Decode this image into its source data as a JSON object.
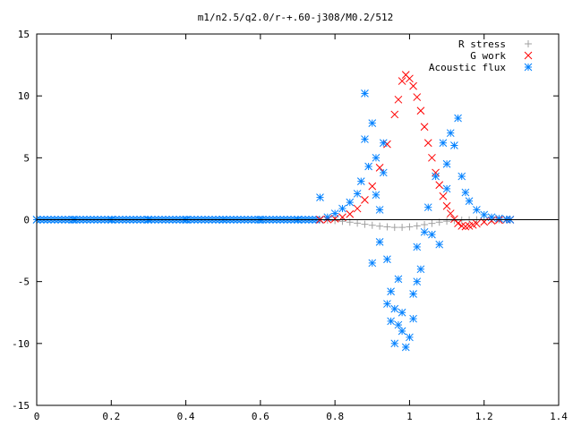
{
  "colors": {
    "r_stress": "#a0a0a0",
    "g_work": "#ff0000",
    "acoustic_flux": "#0080ff",
    "axis": "#000000",
    "background": "#ffffff"
  },
  "chart_data": {
    "type": "scatter",
    "title": "m1/n2.5/q2.0/r-+.60-j308/M0.2/512",
    "xlabel": "",
    "ylabel": "",
    "xlim": [
      0,
      1.4
    ],
    "ylim": [
      -15,
      15
    ],
    "x_ticks": [
      0,
      0.2,
      0.4,
      0.6,
      0.8,
      1,
      1.2,
      1.4
    ],
    "x_tick_labels": [
      "0",
      "0.2",
      "0.4",
      "0.6",
      "0.8",
      "1",
      "1.2",
      "1.4"
    ],
    "y_ticks": [
      -15,
      -10,
      -5,
      0,
      5,
      10,
      15
    ],
    "y_tick_labels": [
      "-15",
      "-10",
      "-5",
      "0",
      "5",
      "10",
      "15"
    ],
    "grid": false,
    "legend_position": "top-right",
    "series": [
      {
        "name": "R stress",
        "marker": "plus",
        "color": "#a0a0a0",
        "points": [
          [
            0.76,
            0.0
          ],
          [
            0.78,
            -0.03
          ],
          [
            0.8,
            -0.07
          ],
          [
            0.82,
            -0.13
          ],
          [
            0.84,
            -0.2
          ],
          [
            0.86,
            -0.28
          ],
          [
            0.88,
            -0.37
          ],
          [
            0.9,
            -0.45
          ],
          [
            0.92,
            -0.52
          ],
          [
            0.94,
            -0.58
          ],
          [
            0.96,
            -0.62
          ],
          [
            0.98,
            -0.62
          ],
          [
            1.0,
            -0.58
          ],
          [
            1.02,
            -0.5
          ],
          [
            1.04,
            -0.4
          ],
          [
            1.06,
            -0.3
          ],
          [
            1.08,
            -0.2
          ],
          [
            1.1,
            -0.12
          ],
          [
            1.12,
            -0.07
          ],
          [
            1.14,
            -0.04
          ],
          [
            1.16,
            -0.02
          ],
          [
            1.18,
            -0.01
          ],
          [
            1.2,
            0.0
          ],
          [
            1.22,
            0.0
          ],
          [
            1.24,
            0.0
          ],
          [
            1.26,
            0.0
          ],
          [
            1.27,
            0.0
          ]
        ]
      },
      {
        "name": "G work",
        "marker": "cross",
        "color": "#ff0000",
        "points": [
          [
            0.76,
            0.0
          ],
          [
            0.78,
            0.02
          ],
          [
            0.8,
            0.08
          ],
          [
            0.82,
            0.2
          ],
          [
            0.84,
            0.45
          ],
          [
            0.86,
            0.9
          ],
          [
            0.88,
            1.6
          ],
          [
            0.9,
            2.7
          ],
          [
            0.92,
            4.2
          ],
          [
            0.94,
            6.1
          ],
          [
            0.96,
            8.5
          ],
          [
            0.97,
            9.7
          ],
          [
            0.98,
            11.2
          ],
          [
            0.99,
            11.7
          ],
          [
            1.0,
            11.4
          ],
          [
            1.01,
            10.8
          ],
          [
            1.02,
            9.9
          ],
          [
            1.03,
            8.8
          ],
          [
            1.04,
            7.5
          ],
          [
            1.05,
            6.2
          ],
          [
            1.06,
            5.0
          ],
          [
            1.07,
            3.8
          ],
          [
            1.08,
            2.8
          ],
          [
            1.09,
            1.9
          ],
          [
            1.1,
            1.1
          ],
          [
            1.11,
            0.5
          ],
          [
            1.12,
            0.05
          ],
          [
            1.13,
            -0.3
          ],
          [
            1.14,
            -0.5
          ],
          [
            1.15,
            -0.55
          ],
          [
            1.16,
            -0.5
          ],
          [
            1.17,
            -0.42
          ],
          [
            1.18,
            -0.32
          ],
          [
            1.2,
            -0.18
          ],
          [
            1.22,
            -0.08
          ],
          [
            1.24,
            -0.03
          ],
          [
            1.26,
            0.0
          ],
          [
            1.27,
            0.0
          ]
        ]
      },
      {
        "name": "Acoustic flux",
        "marker": "star",
        "color": "#0080ff",
        "points": [
          [
            0.0,
            0.0
          ],
          [
            0.1,
            0.0
          ],
          [
            0.2,
            0.0
          ],
          [
            0.3,
            0.0
          ],
          [
            0.4,
            0.0
          ],
          [
            0.5,
            0.0
          ],
          [
            0.6,
            0.0
          ],
          [
            0.7,
            0.0
          ],
          [
            0.76,
            1.8
          ],
          [
            0.78,
            0.2
          ],
          [
            0.8,
            0.5
          ],
          [
            0.82,
            0.9
          ],
          [
            0.84,
            1.4
          ],
          [
            0.86,
            2.1
          ],
          [
            0.87,
            3.1
          ],
          [
            0.88,
            10.2
          ],
          [
            0.88,
            6.5
          ],
          [
            0.89,
            4.3
          ],
          [
            0.9,
            7.8
          ],
          [
            0.9,
            -3.5
          ],
          [
            0.91,
            5.0
          ],
          [
            0.91,
            2.0
          ],
          [
            0.92,
            -1.8
          ],
          [
            0.92,
            0.8
          ],
          [
            0.93,
            6.2
          ],
          [
            0.93,
            3.8
          ],
          [
            0.94,
            -6.8
          ],
          [
            0.94,
            -3.2
          ],
          [
            0.95,
            -5.8
          ],
          [
            0.95,
            -8.2
          ],
          [
            0.96,
            -7.2
          ],
          [
            0.96,
            -10.0
          ],
          [
            0.97,
            -8.5
          ],
          [
            0.97,
            -4.8
          ],
          [
            0.98,
            -9.0
          ],
          [
            0.98,
            -7.5
          ],
          [
            0.99,
            -10.3
          ],
          [
            1.0,
            -9.5
          ],
          [
            1.01,
            -8.0
          ],
          [
            1.01,
            -6.0
          ],
          [
            1.02,
            -5.0
          ],
          [
            1.02,
            -2.2
          ],
          [
            1.03,
            -4.0
          ],
          [
            1.04,
            -1.0
          ],
          [
            1.05,
            1.0
          ],
          [
            1.06,
            -1.2
          ],
          [
            1.07,
            3.5
          ],
          [
            1.08,
            -2.0
          ],
          [
            1.09,
            6.2
          ],
          [
            1.1,
            2.5
          ],
          [
            1.1,
            4.5
          ],
          [
            1.11,
            7.0
          ],
          [
            1.12,
            6.0
          ],
          [
            1.13,
            8.2
          ],
          [
            1.14,
            3.5
          ],
          [
            1.15,
            2.2
          ],
          [
            1.16,
            1.5
          ],
          [
            1.18,
            0.8
          ],
          [
            1.2,
            0.4
          ],
          [
            1.22,
            0.2
          ],
          [
            1.24,
            0.1
          ],
          [
            1.26,
            0.03
          ],
          [
            1.27,
            0.0
          ]
        ]
      }
    ]
  }
}
